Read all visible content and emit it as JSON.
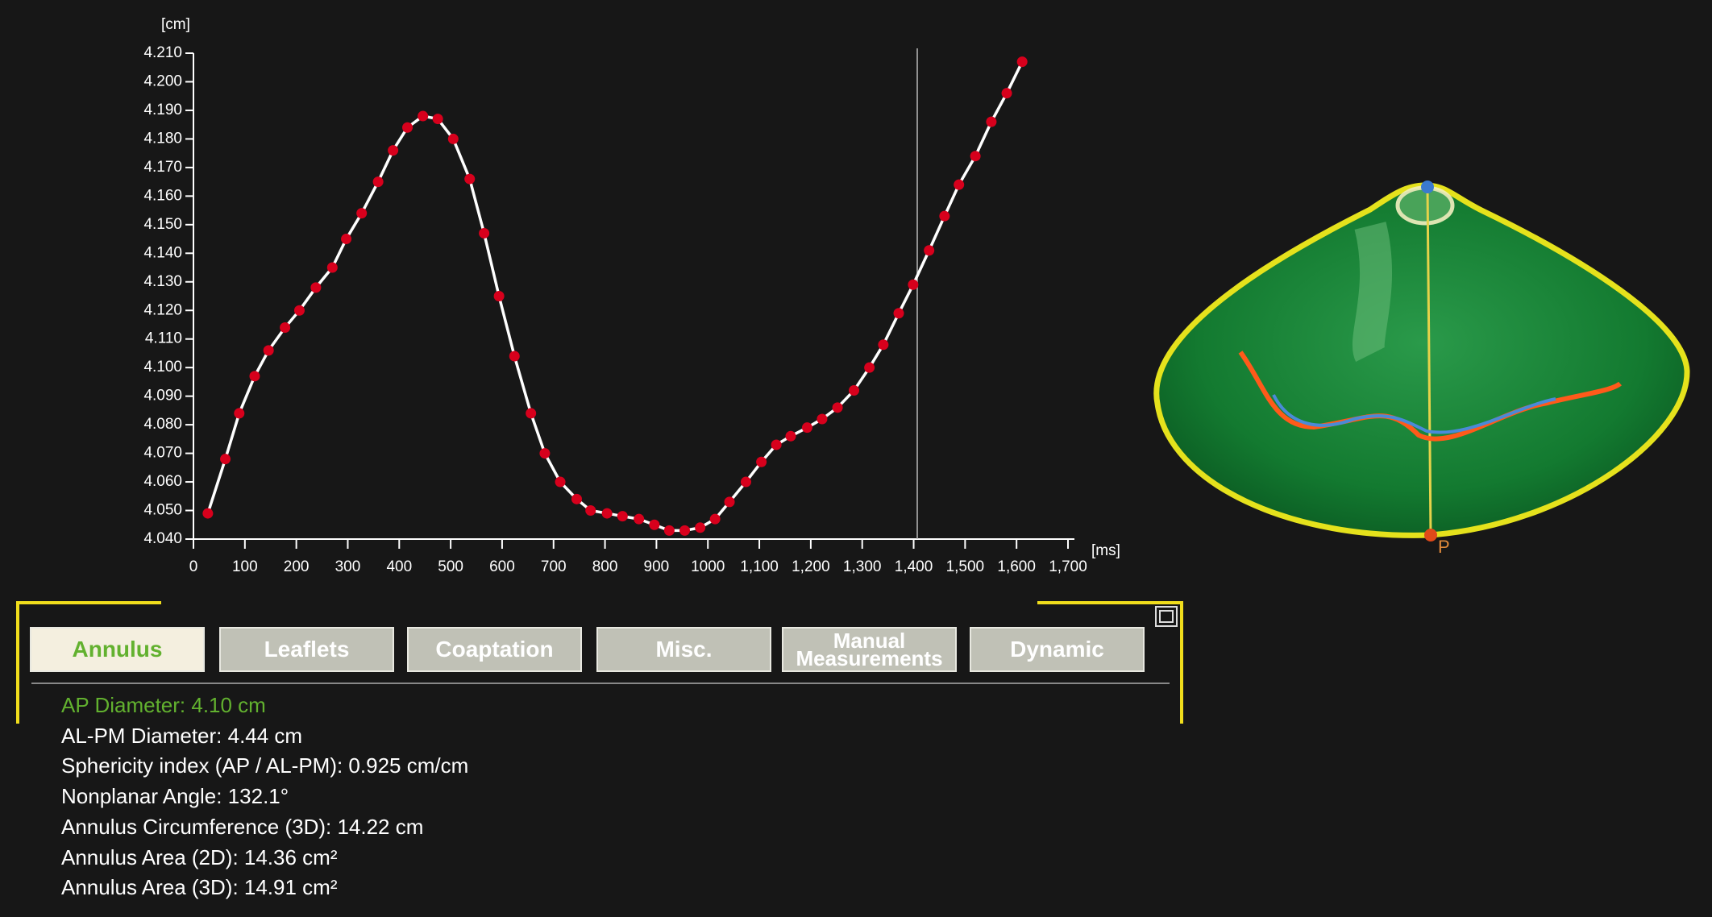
{
  "chart_data": {
    "type": "line",
    "y_label": "[cm]",
    "x_label": "[ms]",
    "x": [
      28,
      62,
      89,
      119,
      146,
      178,
      206,
      238,
      270,
      297,
      327,
      359,
      388,
      416,
      446,
      475,
      505,
      537,
      565,
      594,
      624,
      656,
      683,
      713,
      745,
      772,
      804,
      834,
      866,
      896,
      925,
      955,
      985,
      1014,
      1042,
      1074,
      1104,
      1133,
      1161,
      1193,
      1222,
      1252,
      1284,
      1314,
      1341,
      1371,
      1399,
      1430,
      1460,
      1488,
      1520,
      1551,
      1581,
      1611
    ],
    "values": [
      4.049,
      4.068,
      4.084,
      4.097,
      4.106,
      4.114,
      4.12,
      4.128,
      4.135,
      4.145,
      4.154,
      4.165,
      4.176,
      4.184,
      4.188,
      4.187,
      4.18,
      4.166,
      4.147,
      4.125,
      4.104,
      4.084,
      4.07,
      4.06,
      4.054,
      4.05,
      4.049,
      4.048,
      4.047,
      4.045,
      4.043,
      4.043,
      4.044,
      4.047,
      4.053,
      4.06,
      4.067,
      4.073,
      4.076,
      4.079,
      4.082,
      4.086,
      4.092,
      4.1,
      4.108,
      4.119,
      4.129,
      4.141,
      4.153,
      4.164,
      4.174,
      4.186,
      4.196,
      4.207
    ],
    "line_color": "#ffffff",
    "marker_color": "#d7001c",
    "cursor_x": 1407,
    "xlim": [
      0,
      1700
    ],
    "ylim": [
      4.04,
      4.21
    ],
    "xticks": [
      0,
      100,
      200,
      300,
      400,
      500,
      600,
      700,
      800,
      900,
      {
        "value": 1000,
        "label": "1000"
      },
      {
        "value": 1100,
        "label": "1,100"
      },
      {
        "value": 1200,
        "label": "1,200"
      },
      {
        "value": 1300,
        "label": "1,300"
      },
      {
        "value": 1400,
        "label": "1,400"
      },
      {
        "value": 1500,
        "label": "1,500"
      },
      {
        "value": 1600,
        "label": "1,600"
      },
      {
        "value": 1700,
        "label": "1,700"
      }
    ],
    "yticks": [
      {
        "value": 4.04,
        "label": "4.040"
      },
      {
        "value": 4.05,
        "label": "4.050"
      },
      {
        "value": 4.06,
        "label": "4.060"
      },
      {
        "value": 4.07,
        "label": "4.070"
      },
      {
        "value": 4.08,
        "label": "4.080"
      },
      {
        "value": 4.09,
        "label": "4.090"
      },
      {
        "value": 4.1,
        "label": "4.100"
      },
      {
        "value": 4.11,
        "label": "4.110"
      },
      {
        "value": 4.12,
        "label": "4.120"
      },
      {
        "value": 4.13,
        "label": "4.130"
      },
      {
        "value": 4.14,
        "label": "4.140"
      },
      {
        "value": 4.15,
        "label": "4.150"
      },
      {
        "value": 4.16,
        "label": "4.160"
      },
      {
        "value": 4.17,
        "label": "4.170"
      },
      {
        "value": 4.18,
        "label": "4.180"
      },
      {
        "value": 4.19,
        "label": "4.190"
      },
      {
        "value": 4.2,
        "label": "4.200"
      },
      {
        "value": 4.21,
        "label": "4.210"
      }
    ]
  },
  "tabs": {
    "items": [
      "Annulus",
      "Leaflets",
      "Coaptation",
      "Misc.",
      "Manual Measurements",
      "Dynamic"
    ],
    "active": 0
  },
  "measurements": [
    "AP Diameter: 4.10 cm",
    "AL-PM Diameter: 4.44 cm",
    "Sphericity index (AP / AL-PM): 0.925 cm/cm",
    "Nonplanar Angle: 132.1°",
    "Annulus Circumference (3D): 14.22 cm",
    "Annulus Area (2D): 14.36 cm²",
    "Annulus Area (3D): 14.91 cm²"
  ],
  "valve_label": "P"
}
